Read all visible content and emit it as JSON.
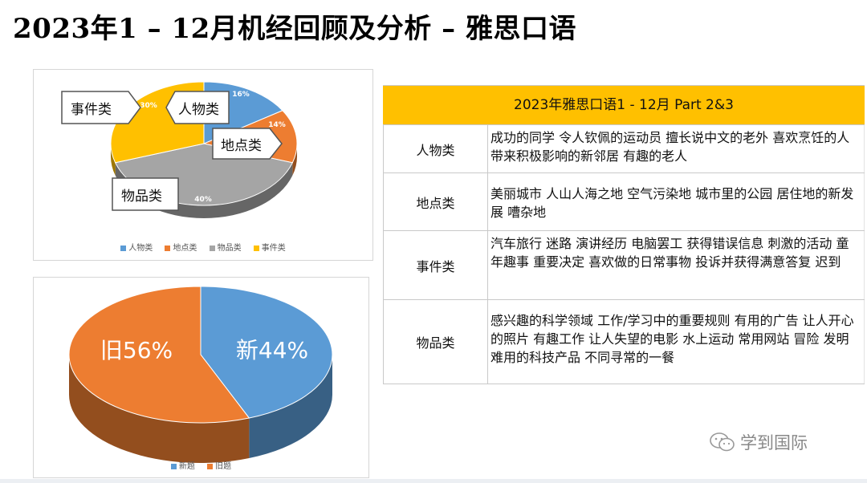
{
  "title": "2023年1 – 12月机经回顾及分析 – 雅思口语",
  "chart_data": [
    {
      "type": "pie",
      "title": "",
      "categories": [
        "人物类",
        "地点类",
        "物品类",
        "事件类"
      ],
      "values": [
        16,
        14,
        40,
        30
      ],
      "labels": [
        "16%",
        "14%",
        "40%",
        "30%"
      ],
      "colors": [
        "#5b9bd5",
        "#ed7d31",
        "#a5a5a5",
        "#ffc000"
      ],
      "legend": "bottom",
      "callouts": [
        "事件类",
        "人物类",
        "地点类",
        "物品类"
      ]
    },
    {
      "type": "pie",
      "title": "",
      "categories": [
        "新题",
        "旧题"
      ],
      "values": [
        44,
        56
      ],
      "labels": [
        "新44%",
        "旧56%"
      ],
      "colors": [
        "#5b9bd5",
        "#ed7d31"
      ],
      "legend": "bottom"
    }
  ],
  "table": {
    "header": "2023年雅思口语1 - 12月 Part 2&3",
    "rows": [
      {
        "category": "人物类",
        "topics": "成功的同学 令人钦佩的运动员 擅长说中文的老外 喜欢烹饪的人 带来积极影响的新邻居 有趣的老人"
      },
      {
        "category": "地点类",
        "topics": "美丽城市 人山人海之地 空气污染地 城市里的公园 居住地的新发展 嘈杂地"
      },
      {
        "category": "事件类",
        "topics": "汽车旅行 迷路 演讲经历 电脑罢工 获得错误信息 刺激的活动 童年趣事 重要决定 喜欢做的日常事物 投诉并获得满意答复 迟到"
      },
      {
        "category": "物品类",
        "topics": "感兴趣的科学领域 工作/学习中的重要规则 有用的广告 让人开心的照片 有趣工作 让人失望的电影 水上运动 常用网站 冒险 发明 难用的科技产品 不同寻常的一餐"
      }
    ]
  },
  "watermark": "学到国际"
}
